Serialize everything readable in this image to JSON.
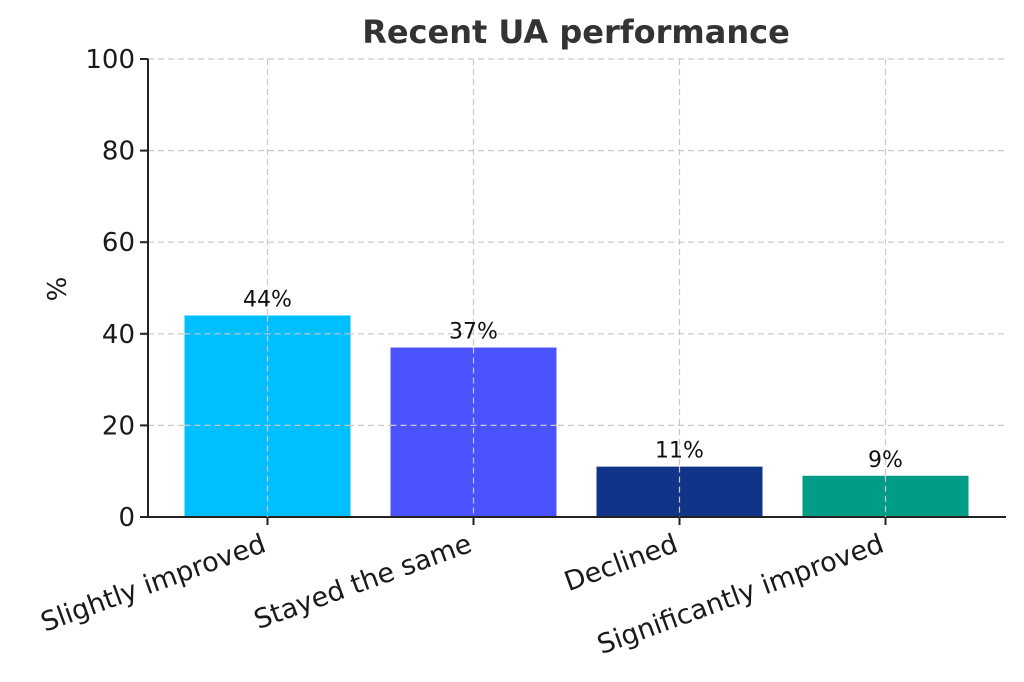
{
  "chart_data": {
    "type": "bar",
    "title": "Recent UA performance",
    "xlabel": "",
    "ylabel": "%",
    "ylim": [
      0,
      100
    ],
    "yticks": [
      0,
      20,
      40,
      60,
      80,
      100
    ],
    "categories": [
      "Slightly improved",
      "Stayed the same",
      "Declined",
      "Significantly improved"
    ],
    "values": [
      44,
      37,
      11,
      9
    ],
    "data_labels": [
      "44%",
      "37%",
      "11%",
      "9%"
    ],
    "colors": [
      "#00bfff",
      "#4b52ff",
      "#0f3488",
      "#009c85"
    ],
    "grid": true,
    "legend": "none"
  }
}
